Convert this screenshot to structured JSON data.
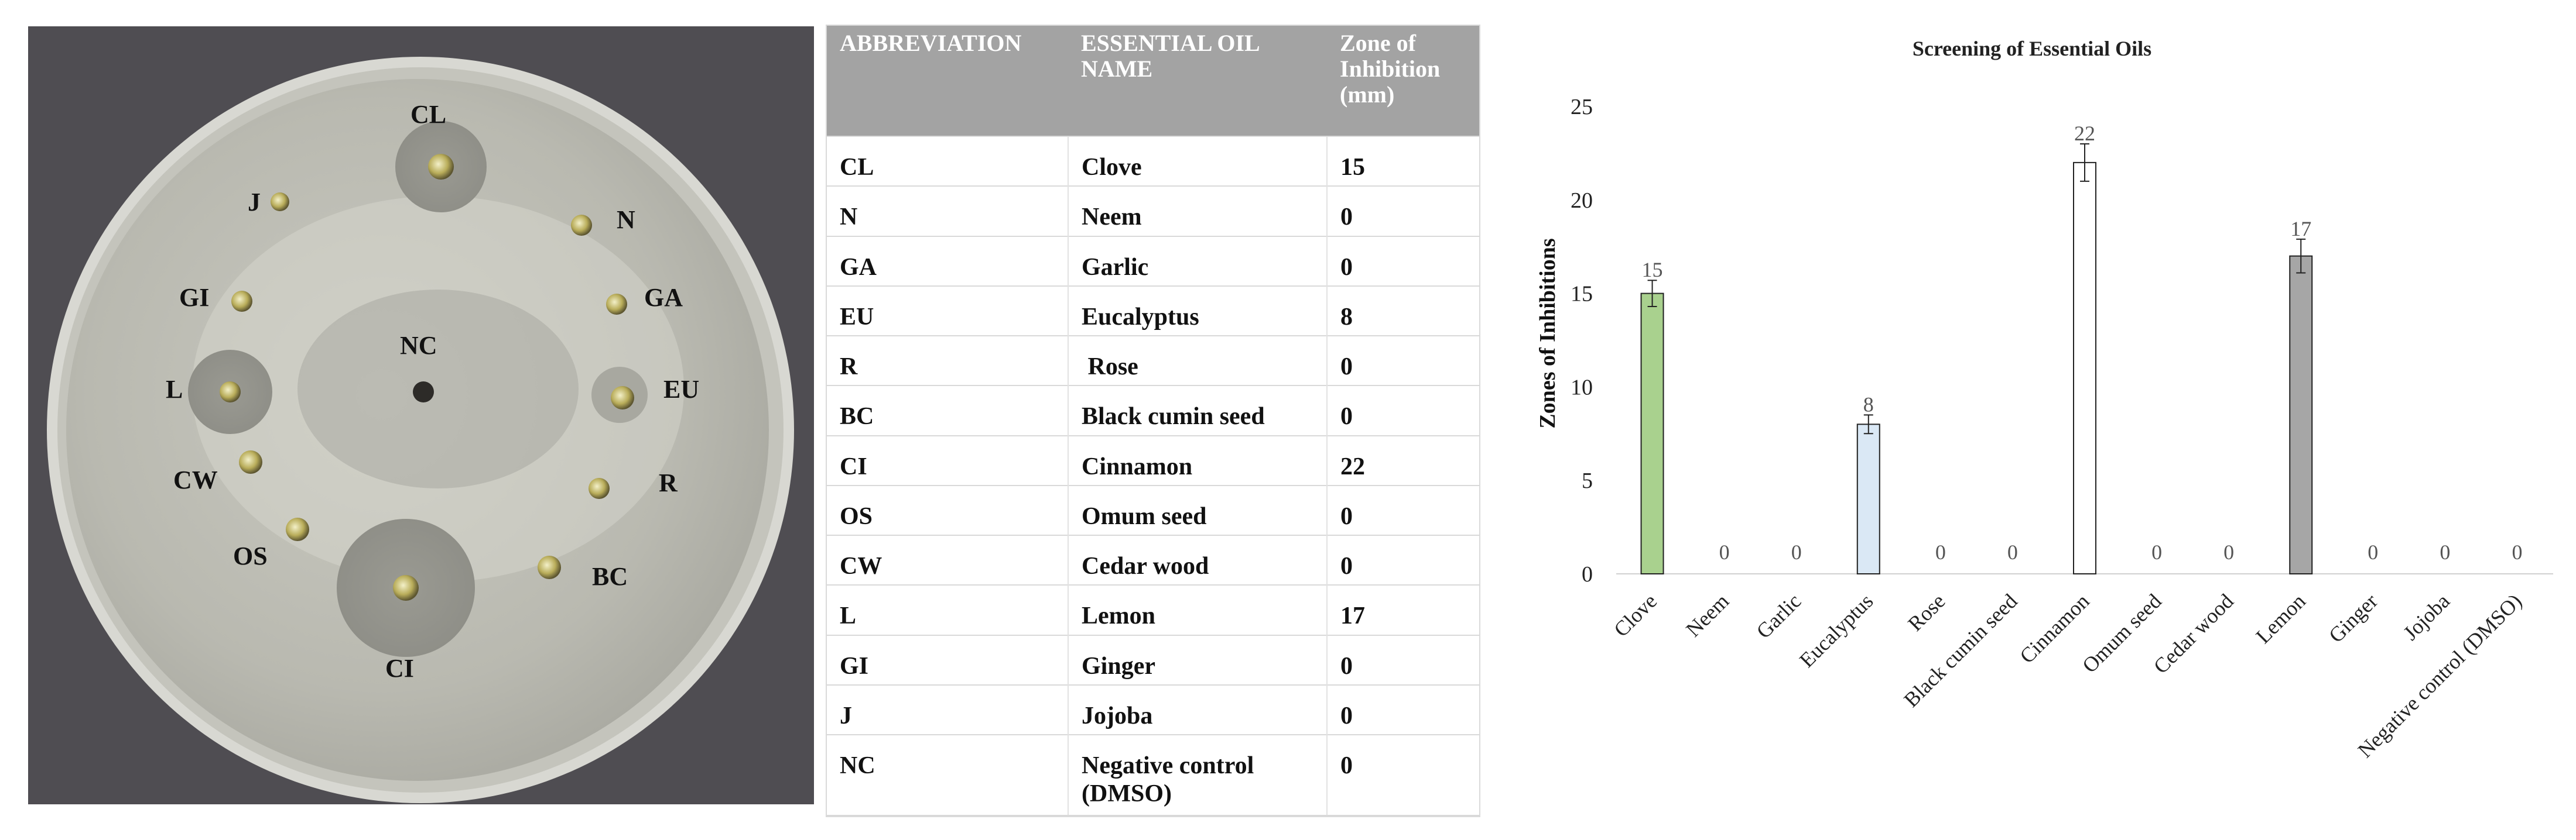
{
  "photo": {
    "labels": [
      "CL",
      "J",
      "N",
      "GI",
      "GA",
      "NC",
      "L",
      "EU",
      "CW",
      "R",
      "OS",
      "BC",
      "CI"
    ]
  },
  "table": {
    "headers": [
      "ABBREVIATION",
      "ESSENTIAL OIL NAME",
      "Zone of Inhibition (mm)"
    ],
    "rows": [
      {
        "abbr": "CL",
        "name": "Clove",
        "zone": "15"
      },
      {
        "abbr": "N",
        "name": "Neem",
        "zone": "0"
      },
      {
        "abbr": "GA",
        "name": "Garlic",
        "zone": "0"
      },
      {
        "abbr": "EU",
        "name": "Eucalyptus",
        "zone": "8"
      },
      {
        "abbr": "R",
        "name": " Rose",
        "zone": "0"
      },
      {
        "abbr": "BC",
        "name": "Black cumin seed",
        "zone": "0"
      },
      {
        "abbr": "CI",
        "name": "Cinnamon",
        "zone": "22"
      },
      {
        "abbr": "OS",
        "name": "Omum seed",
        "zone": "0"
      },
      {
        "abbr": "CW",
        "name": "Cedar wood",
        "zone": "0"
      },
      {
        "abbr": "L",
        "name": "Lemon",
        "zone": "17"
      },
      {
        "abbr": "GI",
        "name": "Ginger",
        "zone": "0"
      },
      {
        "abbr": "J",
        "name": "Jojoba",
        "zone": "0"
      },
      {
        "abbr": "NC",
        "name": "Negative control (DMSO)",
        "zone": "0"
      }
    ]
  },
  "chart_data": {
    "type": "bar",
    "title": "Screening of Essential Oils",
    "xlabel": "",
    "ylabel": "Zones of Inhibitions",
    "ylim": [
      0,
      25
    ],
    "yticks": [
      0,
      5,
      10,
      15,
      20,
      25
    ],
    "categories": [
      "Clove",
      "Neem",
      "Garlic",
      "Eucalyptus",
      "Rose",
      "Black cumin seed",
      "Cinnamon",
      "Omum seed",
      "Cedar wood",
      "Lemon",
      "Ginger",
      "Jojoba",
      "Negative control (DMSO)"
    ],
    "values": [
      15,
      0,
      0,
      8,
      0,
      0,
      22,
      0,
      0,
      17,
      0,
      0,
      0
    ],
    "errors": [
      0.7,
      0,
      0,
      0.5,
      0,
      0,
      1.0,
      0,
      0,
      0.9,
      0,
      0,
      0
    ],
    "data_labels": [
      "15",
      "0",
      "0",
      "8",
      "0",
      "0",
      "22",
      "0",
      "0",
      "17",
      "0",
      "0",
      "0"
    ],
    "bar_colors": [
      "#a9d18e",
      "#ffffff",
      "#ffffff",
      "#dae8f5",
      "#ffffff",
      "#ffffff",
      "#ffffff",
      "#ffffff",
      "#ffffff",
      "#a6a6a6",
      "#ffffff",
      "#ffffff",
      "#ffffff"
    ],
    "grid": false
  }
}
